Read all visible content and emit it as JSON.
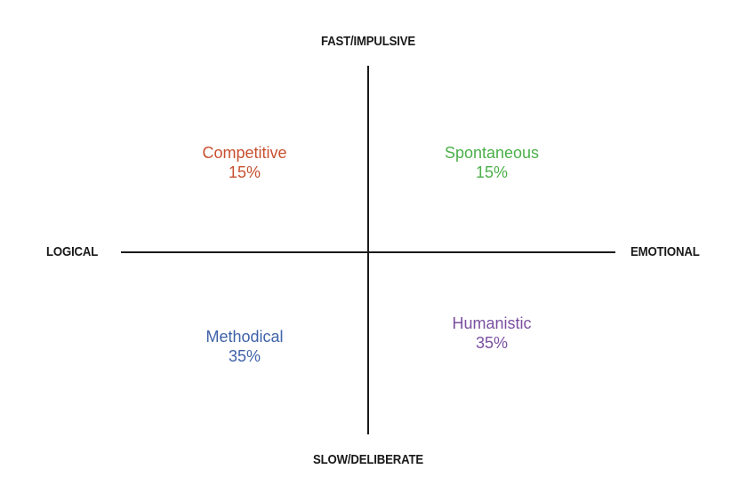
{
  "axes": {
    "top": "FAST/IMPULSIVE",
    "bottom": "SLOW/DELIBERATE",
    "left": "LOGICAL",
    "right": "EMOTIONAL",
    "color": "#1a1a1a"
  },
  "quadrants": [
    {
      "name": "Competitive",
      "percent": "15%",
      "color": "#c8502f"
    },
    {
      "name": "Spontaneous",
      "percent": "15%",
      "color": "#4bb04a"
    },
    {
      "name": "Methodical",
      "percent": "35%",
      "color": "#3f63a8"
    },
    {
      "name": "Humanistic",
      "percent": "35%",
      "color": "#7a4fa0"
    }
  ]
}
